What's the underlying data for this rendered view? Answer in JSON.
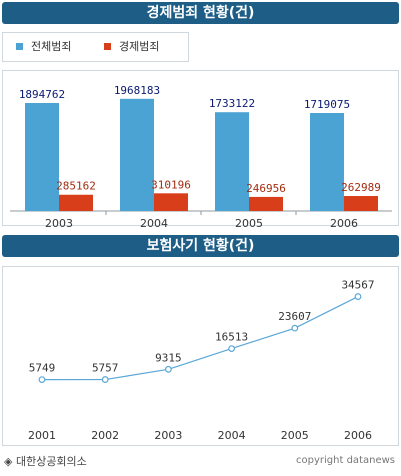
{
  "titles": {
    "crime": "경제범죄 현황(건)",
    "fraud": "보험사기 현황(건)"
  },
  "legend": [
    {
      "label": "전체범죄",
      "color": "#4ba3d4"
    },
    {
      "label": "경제범죄",
      "color": "#d93e1a"
    }
  ],
  "source": "◈ 대한상공회의소",
  "copyright": "copyright datanews",
  "colors": {
    "title_bg": "#1d5d86",
    "total_label": "#0a1a73",
    "economic_label": "#a32d12",
    "line": "#5aa7d8"
  },
  "chart_data": [
    {
      "type": "bar",
      "title": "경제범죄 현황(건)",
      "categories": [
        "2003",
        "2004",
        "2005",
        "2006"
      ],
      "series": [
        {
          "name": "전체범죄",
          "values": [
            1894762,
            1968183,
            1733122,
            1719075
          ]
        },
        {
          "name": "경제범죄",
          "values": [
            285162,
            310196,
            246956,
            262989
          ]
        }
      ],
      "legend": "top-left"
    },
    {
      "type": "line",
      "title": "보험사기 현황(건)",
      "categories": [
        "2001",
        "2002",
        "2003",
        "2004",
        "2005",
        "2006"
      ],
      "values": [
        5749,
        5757,
        9315,
        16513,
        23607,
        34567
      ]
    }
  ]
}
